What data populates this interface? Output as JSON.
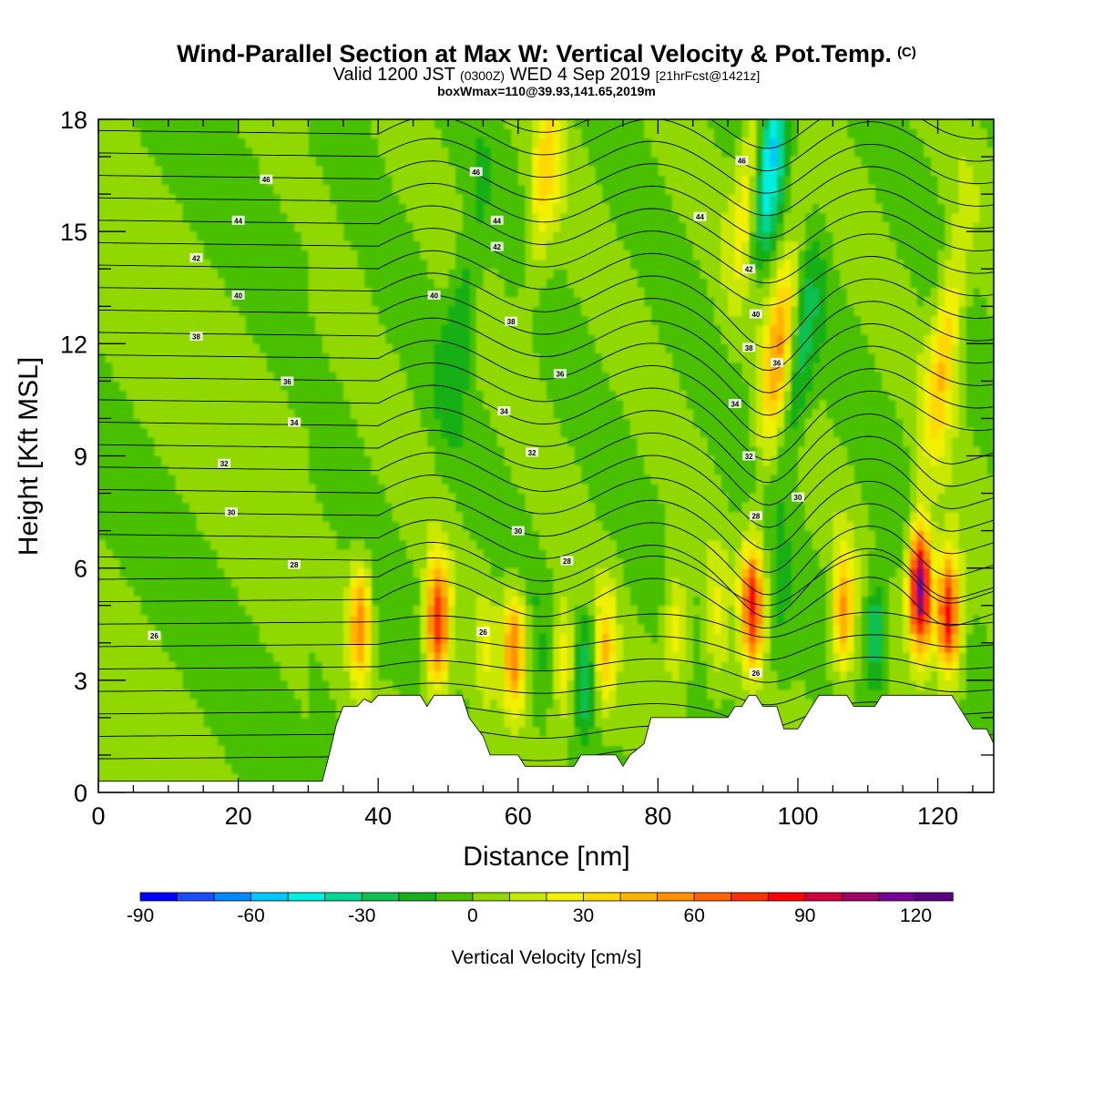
{
  "titles": {
    "main": "Wind-Parallel Section at Max W: Vertical Velocity & Pot.Temp.",
    "mark": "(C)",
    "valid_a": "Valid 1200 JST",
    "valid_b": "(0300Z)",
    "valid_c": "WED 4 Sep 2019",
    "valid_d": "[21hrFcst@1421z]",
    "box": "boxWmax=110@39.93,141.65,2019m"
  },
  "chart_data": {
    "type": "heatmap",
    "xlabel": "Distance [nm]",
    "ylabel": "Height [Kft MSL]",
    "xlim": [
      0,
      128
    ],
    "ylim": [
      0,
      18
    ],
    "x_ticks": [
      0,
      20,
      40,
      60,
      80,
      100,
      120
    ],
    "y_ticks": [
      0,
      3,
      6,
      9,
      12,
      15,
      18
    ],
    "colorbar": {
      "label": "Vertical Velocity [cm/s]",
      "min": -90,
      "max": 130,
      "step": 10,
      "tick_values": [
        -90,
        -60,
        -30,
        0,
        30,
        60,
        90,
        120
      ],
      "colors": [
        "#0000ff",
        "#1a4dff",
        "#0088ff",
        "#00c8ff",
        "#00eee0",
        "#00d898",
        "#10c050",
        "#18b018",
        "#48c000",
        "#90d800",
        "#c8e800",
        "#f0f000",
        "#ffd800",
        "#ffb400",
        "#ff9000",
        "#ff6400",
        "#ff3000",
        "#ff0000",
        "#d0003c",
        "#a00064",
        "#780096",
        "#5a0082"
      ]
    },
    "theta_contour_labels": [
      {
        "x": 24,
        "y": 16.4,
        "label": "46"
      },
      {
        "x": 20,
        "y": 15.3,
        "label": "44"
      },
      {
        "x": 14,
        "y": 14.3,
        "label": "42"
      },
      {
        "x": 20,
        "y": 13.3,
        "label": "40"
      },
      {
        "x": 14,
        "y": 12.2,
        "label": "38"
      },
      {
        "x": 27,
        "y": 11.0,
        "label": "36"
      },
      {
        "x": 28,
        "y": 9.9,
        "label": "34"
      },
      {
        "x": 18,
        "y": 8.8,
        "label": "32"
      },
      {
        "x": 19,
        "y": 7.5,
        "label": "30"
      },
      {
        "x": 28,
        "y": 6.1,
        "label": "28"
      },
      {
        "x": 8,
        "y": 4.2,
        "label": "26"
      },
      {
        "x": 54,
        "y": 16.6,
        "label": "46"
      },
      {
        "x": 57,
        "y": 15.3,
        "label": "44"
      },
      {
        "x": 57,
        "y": 14.6,
        "label": "42"
      },
      {
        "x": 48,
        "y": 13.3,
        "label": "40"
      },
      {
        "x": 59,
        "y": 12.6,
        "label": "38"
      },
      {
        "x": 66,
        "y": 11.2,
        "label": "36"
      },
      {
        "x": 58,
        "y": 10.2,
        "label": "34"
      },
      {
        "x": 62,
        "y": 9.1,
        "label": "32"
      },
      {
        "x": 60,
        "y": 7.0,
        "label": "30"
      },
      {
        "x": 67,
        "y": 6.2,
        "label": "28"
      },
      {
        "x": 55,
        "y": 4.3,
        "label": "26"
      },
      {
        "x": 92,
        "y": 16.9,
        "label": "46"
      },
      {
        "x": 86,
        "y": 15.4,
        "label": "44"
      },
      {
        "x": 93,
        "y": 14.0,
        "label": "42"
      },
      {
        "x": 94,
        "y": 12.8,
        "label": "40"
      },
      {
        "x": 93,
        "y": 11.9,
        "label": "38"
      },
      {
        "x": 97,
        "y": 11.5,
        "label": "36"
      },
      {
        "x": 91,
        "y": 10.4,
        "label": "34"
      },
      {
        "x": 93,
        "y": 9.0,
        "label": "32"
      },
      {
        "x": 100,
        "y": 7.9,
        "label": "30"
      },
      {
        "x": 94,
        "y": 7.4,
        "label": "28"
      },
      {
        "x": 94,
        "y": 3.2,
        "label": "26"
      }
    ],
    "terrain_top_kft": [
      [
        0,
        0.3
      ],
      [
        32,
        0.3
      ],
      [
        33,
        1.0
      ],
      [
        34,
        1.8
      ],
      [
        35,
        2.3
      ],
      [
        36,
        2.3
      ],
      [
        37,
        2.3
      ],
      [
        38,
        2.5
      ],
      [
        39,
        2.4
      ],
      [
        40,
        2.6
      ],
      [
        46,
        2.6
      ],
      [
        47,
        2.3
      ],
      [
        48,
        2.6
      ],
      [
        52,
        2.6
      ],
      [
        53,
        2.0
      ],
      [
        55,
        1.5
      ],
      [
        56,
        1.0
      ],
      [
        60,
        1.0
      ],
      [
        61,
        0.7
      ],
      [
        68,
        0.7
      ],
      [
        69,
        1.0
      ],
      [
        74,
        1.0
      ],
      [
        75,
        0.7
      ],
      [
        76,
        1.0
      ],
      [
        78,
        1.3
      ],
      [
        79,
        2.0
      ],
      [
        90,
        2.0
      ],
      [
        91,
        2.3
      ],
      [
        92,
        2.3
      ],
      [
        93,
        2.6
      ],
      [
        94,
        2.6
      ],
      [
        95,
        2.3
      ],
      [
        97,
        2.3
      ],
      [
        98,
        1.7
      ],
      [
        100,
        1.7
      ],
      [
        101,
        2.0
      ],
      [
        102,
        2.3
      ],
      [
        103,
        2.6
      ],
      [
        107,
        2.6
      ],
      [
        108,
        2.3
      ],
      [
        111,
        2.3
      ],
      [
        112,
        2.6
      ],
      [
        122,
        2.6
      ],
      [
        123,
        2.3
      ],
      [
        124,
        2.0
      ],
      [
        125,
        1.7
      ],
      [
        127,
        1.7
      ],
      [
        128,
        1.3
      ]
    ],
    "w_features": [
      {
        "x": 37.5,
        "z": 4.5,
        "w": 60
      },
      {
        "x": 39.0,
        "z": 4.2,
        "w": -10
      },
      {
        "x": 48.5,
        "z": 4.5,
        "w": 80
      },
      {
        "x": 55.5,
        "z": 3.8,
        "w": 20
      },
      {
        "x": 59.5,
        "z": 3.8,
        "w": 60
      },
      {
        "x": 63.0,
        "z": 3.5,
        "w": -10
      },
      {
        "x": 66.5,
        "z": 3.5,
        "w": 30
      },
      {
        "x": 69.5,
        "z": 3.2,
        "w": -30
      },
      {
        "x": 72.5,
        "z": 3.8,
        "w": 40
      },
      {
        "x": 82.5,
        "z": 4.5,
        "w": 30
      },
      {
        "x": 88.5,
        "z": 4.5,
        "w": 20
      },
      {
        "x": 93.5,
        "z": 5.0,
        "w": 80
      },
      {
        "x": 97.5,
        "z": 4.5,
        "w": -10
      },
      {
        "x": 106.5,
        "z": 4.8,
        "w": 50
      },
      {
        "x": 111.0,
        "z": 4.3,
        "w": -30
      },
      {
        "x": 117.5,
        "z": 5.5,
        "w": 120
      },
      {
        "x": 121.5,
        "z": 4.8,
        "w": 90
      },
      {
        "x": 96.0,
        "z": 17.2,
        "w": -60
      },
      {
        "x": 93.5,
        "z": 16.5,
        "w": 40
      },
      {
        "x": 97.5,
        "z": 12.0,
        "w": 50
      },
      {
        "x": 100.0,
        "z": 11.5,
        "w": -30
      },
      {
        "x": 121.0,
        "z": 11.8,
        "w": 40
      },
      {
        "x": 64.0,
        "z": 16.5,
        "w": 30
      },
      {
        "x": 52.0,
        "z": 13.0,
        "w": -20
      }
    ]
  }
}
